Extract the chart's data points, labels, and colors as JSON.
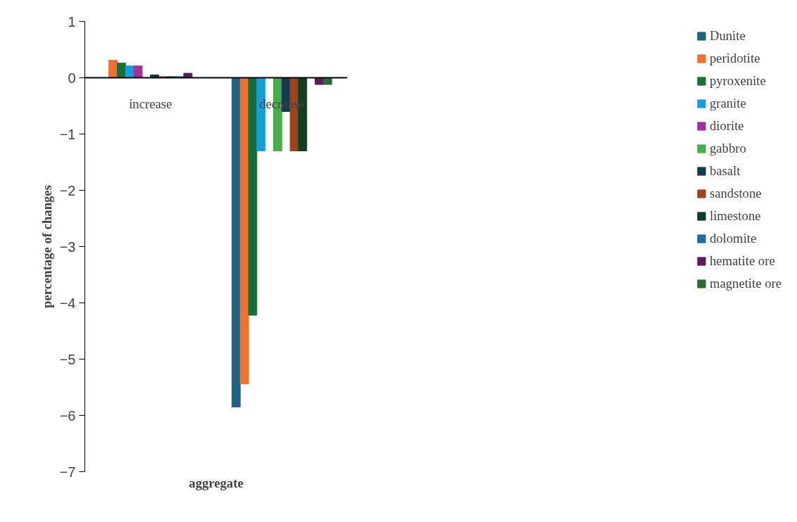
{
  "chart_data": {
    "type": "bar",
    "xlabel": "aggregate",
    "ylabel": "percentage of changes",
    "categories": [
      "increase",
      "decrease"
    ],
    "ylim": [
      -7,
      1
    ],
    "yticks": [
      -7,
      -6,
      -5,
      -4,
      -3,
      -2,
      -1,
      0,
      1
    ],
    "grid": false,
    "legend": "right",
    "series": [
      {
        "name": "Dunite",
        "color": "#1f6182",
        "values": [
          0,
          -5.85
        ]
      },
      {
        "name": "peridotite",
        "color": "#ed7130",
        "values": [
          0.31,
          -5.44
        ]
      },
      {
        "name": "pyroxenite",
        "color": "#1a6e3a",
        "values": [
          0.26,
          -4.22
        ]
      },
      {
        "name": "granite",
        "color": "#1b9ed8",
        "values": [
          0.21,
          -1.3
        ]
      },
      {
        "name": "diorite",
        "color": "#a3319c",
        "values": [
          0.21,
          0
        ]
      },
      {
        "name": "gabbro",
        "color": "#4aab4a",
        "values": [
          0,
          -1.3
        ]
      },
      {
        "name": "basalt",
        "color": "#133a50",
        "values": [
          0.05,
          -0.6
        ]
      },
      {
        "name": "sandstone",
        "color": "#9c4322",
        "values": [
          0.02,
          -1.3
        ]
      },
      {
        "name": "limestone",
        "color": "#10401f",
        "values": [
          0.02,
          -1.3
        ]
      },
      {
        "name": "dolomite",
        "color": "#1f6aa0",
        "values": [
          0.02,
          0
        ]
      },
      {
        "name": "hematite ore",
        "color": "#5a1d5a",
        "values": [
          0.08,
          -0.12
        ]
      },
      {
        "name": "magnetite ore",
        "color": "#2e6b34",
        "values": [
          0,
          -0.12
        ]
      }
    ]
  }
}
